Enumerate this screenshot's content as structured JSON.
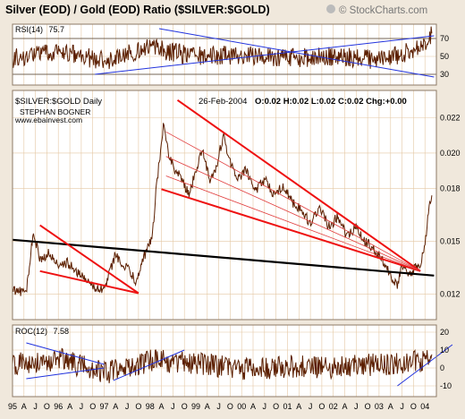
{
  "title": "Silver (EOD) / Gold (EOD) Ratio ($SILVER:$GOLD)",
  "watermark": "© StockCharts.com",
  "price_panel": {
    "symbol": "$SILVER:$GOLD Daily",
    "author": "STEPHAN BOGNER",
    "website": "www.ebainvest.com",
    "date": "26-Feb-2004",
    "ohlc": "O:0.02 H:0.02 L:0.02 C:0.02 Chg:+0.00"
  },
  "rsi_panel": {
    "label": "RSI(14)",
    "value": "75.7"
  },
  "roc_panel": {
    "label": "ROC(12)",
    "value": "7.58"
  },
  "colors": {
    "series": "#5c1f00",
    "grid": "#e4c7a3",
    "frame": "#8c7a66",
    "trendline_blue": "#2233dd",
    "trendline_red": "#ee1111",
    "trendline_thin_red": "#e03a3a",
    "support_black": "#000000",
    "page_background": "#f0e8dc",
    "panel_background": "#ffffff"
  },
  "chart_data": [
    {
      "type": "line",
      "name": "rsi",
      "ylim": [
        18,
        86
      ],
      "yticks": [
        30,
        50,
        70
      ],
      "reference_levels": [
        30,
        70
      ],
      "grid": true,
      "series": [
        {
          "x": [
            1995.0,
            1996.0,
            1997.0,
            1998.0,
            1999.0,
            2000.0,
            2001.0,
            2002.0,
            2003.0,
            2004.0,
            2004.15
          ],
          "values": [
            48,
            55,
            45,
            60,
            50,
            52,
            48,
            50,
            46,
            60,
            75.7
          ]
        }
      ],
      "trendlines": [
        {
          "color": "blue",
          "points": [
            [
              1998.2,
              81
            ],
            [
              2004.2,
              27
            ]
          ]
        },
        {
          "color": "blue",
          "points": [
            [
              1996.8,
              30
            ],
            [
              2004.2,
              73
            ]
          ]
        }
      ]
    },
    {
      "type": "line",
      "name": "price",
      "ylim": [
        0.01055,
        0.02355
      ],
      "yticks": [
        0.012,
        0.015,
        0.018,
        0.02,
        0.022
      ],
      "grid": true,
      "series": [
        {
          "x": [
            1995.0,
            1995.3,
            1995.45,
            1995.6,
            1995.8,
            1996.0,
            1996.2,
            1996.4,
            1996.6,
            1996.8,
            1997.0,
            1997.1,
            1997.25,
            1997.4,
            1997.55,
            1997.7,
            1997.85,
            1997.95,
            1998.05,
            1998.12,
            1998.2,
            1998.3,
            1998.4,
            1998.55,
            1998.7,
            1998.85,
            1999.0,
            1999.15,
            1999.3,
            1999.45,
            1999.6,
            1999.75,
            1999.9,
            2000.1,
            2000.3,
            2000.5,
            2000.7,
            2000.9,
            2001.1,
            2001.3,
            2001.5,
            2001.7,
            2001.9,
            2002.1,
            2002.3,
            2002.5,
            2002.7,
            2002.9,
            2003.1,
            2003.25,
            2003.4,
            2003.5,
            2003.6,
            2003.7,
            2003.8,
            2003.9,
            2004.0,
            2004.1,
            2004.15
          ],
          "values": [
            0.0123,
            0.012,
            0.0155,
            0.014,
            0.0143,
            0.0136,
            0.0138,
            0.0132,
            0.0128,
            0.0124,
            0.0123,
            0.013,
            0.0143,
            0.0136,
            0.0134,
            0.0126,
            0.014,
            0.0146,
            0.0152,
            0.0175,
            0.0195,
            0.0218,
            0.02,
            0.019,
            0.0185,
            0.0176,
            0.019,
            0.0203,
            0.0185,
            0.0192,
            0.021,
            0.0195,
            0.0186,
            0.019,
            0.0178,
            0.0185,
            0.0176,
            0.0182,
            0.0172,
            0.0168,
            0.016,
            0.017,
            0.0158,
            0.0164,
            0.0152,
            0.0158,
            0.015,
            0.0145,
            0.0138,
            0.013,
            0.0125,
            0.0137,
            0.0134,
            0.013,
            0.0136,
            0.0138,
            0.0148,
            0.017,
            0.0176
          ]
        }
      ],
      "trendlines": [
        {
          "color": "black",
          "points": [
            [
              1995.0,
              0.01508
            ],
            [
              2004.2,
              0.01305
            ]
          ]
        },
        {
          "color": "red",
          "points": [
            [
              1995.6,
              0.0159
            ],
            [
              1997.75,
              0.01205
            ]
          ]
        },
        {
          "color": "red",
          "points": [
            [
              1995.6,
              0.0133
            ],
            [
              1997.75,
              0.01205
            ]
          ]
        },
        {
          "color": "red",
          "points": [
            [
              1998.6,
              0.023
            ],
            [
              2003.9,
              0.0133
            ]
          ]
        },
        {
          "color": "red",
          "points": [
            [
              1998.25,
              0.01795
            ],
            [
              2003.9,
              0.0133
            ]
          ]
        },
        {
          "color": "thin-red",
          "points": [
            [
              1998.35,
              0.0212
            ],
            [
              2003.9,
              0.0133
            ]
          ]
        },
        {
          "color": "thin-red",
          "points": [
            [
              1998.35,
              0.0198
            ],
            [
              2003.9,
              0.0133
            ]
          ]
        },
        {
          "color": "thin-red",
          "points": [
            [
              1998.35,
              0.0187
            ],
            [
              2003.9,
              0.0133
            ]
          ]
        }
      ]
    },
    {
      "type": "line",
      "name": "roc",
      "ylim": [
        -16,
        24
      ],
      "yticks": [
        -10,
        0,
        10,
        20
      ],
      "grid": true,
      "series": [
        {
          "x": [
            1995.0,
            1996.0,
            1997.0,
            1998.0,
            1999.0,
            2000.0,
            2001.0,
            2002.0,
            2003.0,
            2004.0,
            2004.15
          ],
          "values": [
            2,
            5,
            -3,
            4,
            3,
            -1,
            1,
            0,
            2,
            4,
            7.58
          ]
        }
      ],
      "trendlines": [
        {
          "color": "blue",
          "points": [
            [
              1995.3,
              14
            ],
            [
              1997.0,
              2
            ]
          ]
        },
        {
          "color": "blue",
          "points": [
            [
              1995.3,
              -6
            ],
            [
              1997.0,
              0
            ]
          ]
        },
        {
          "color": "blue",
          "points": [
            [
              1997.2,
              -7
            ],
            [
              1998.75,
              10
            ]
          ]
        },
        {
          "color": "blue",
          "points": [
            [
              2003.4,
              -10
            ],
            [
              2004.6,
              13
            ]
          ]
        }
      ]
    }
  ],
  "x_axis": {
    "range": [
      1995.0,
      2004.25
    ],
    "tick_labels": [
      "95",
      "A",
      "J",
      "O",
      "96",
      "A",
      "J",
      "O",
      "97",
      "A",
      "J",
      "O",
      "98",
      "A",
      "J",
      "O",
      "99",
      "A",
      "J",
      "O",
      "00",
      "A",
      "J",
      "O",
      "01",
      "A",
      "J",
      "O",
      "02",
      "A",
      "J",
      "O",
      "03",
      "A",
      "J",
      "O",
      "04"
    ],
    "tick_positions": [
      1995.0,
      1995.25,
      1995.5,
      1995.75,
      1996.0,
      1996.25,
      1996.5,
      1996.75,
      1997.0,
      1997.25,
      1997.5,
      1997.75,
      1998.0,
      1998.25,
      1998.5,
      1998.75,
      1999.0,
      1999.25,
      1999.5,
      1999.75,
      2000.0,
      2000.25,
      2000.5,
      2000.75,
      2001.0,
      2001.25,
      2001.5,
      2001.75,
      2002.0,
      2002.25,
      2002.5,
      2002.75,
      2003.0,
      2003.25,
      2003.5,
      2003.75,
      2004.0
    ]
  }
}
